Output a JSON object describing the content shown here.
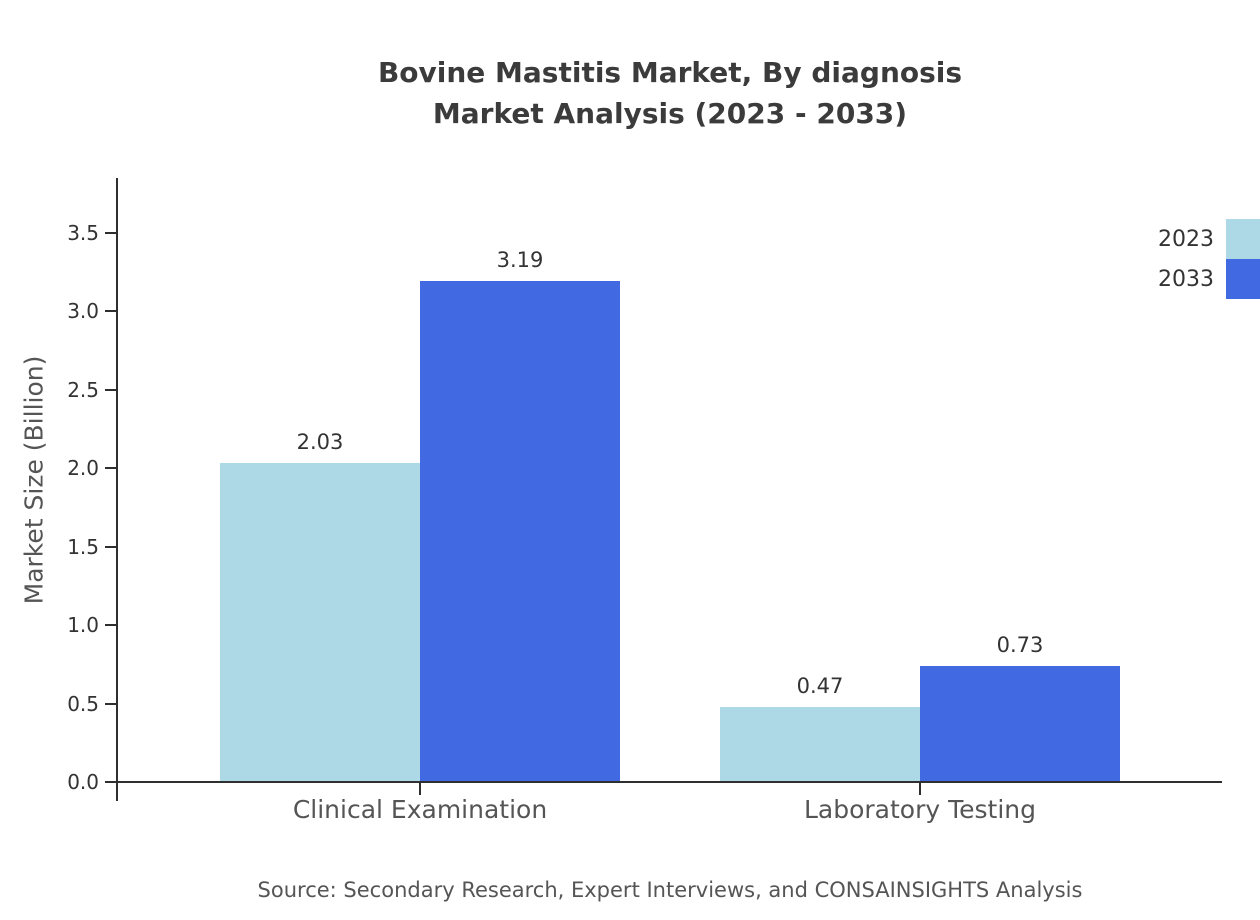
{
  "title": {
    "line1": "Bovine Mastitis Market, By diagnosis",
    "line2": "Market Analysis (2023 - 2033)"
  },
  "source": "Source: Secondary Research, Expert Interviews, and CONSAINSIGHTS Analysis",
  "chart_data": {
    "type": "bar",
    "title": "Bovine Mastitis Market, By diagnosis — Market Analysis (2023 - 2033)",
    "categories": [
      "Clinical Examination",
      "Laboratory Testing"
    ],
    "series": [
      {
        "name": "2023",
        "color": "#ADD8E6",
        "values": [
          2.03,
          0.47
        ]
      },
      {
        "name": "2033",
        "color": "#4169E1",
        "values": [
          3.19,
          0.73
        ]
      }
    ],
    "value_labels": [
      [
        "2.03",
        "0.47"
      ],
      [
        "3.19",
        "0.73"
      ]
    ],
    "xlabel": "",
    "ylabel": "Market Size (Billion)",
    "ylim": [
      0,
      3.5
    ],
    "ytick_step": 0.5,
    "grid": false,
    "legend_position": "upper right"
  }
}
